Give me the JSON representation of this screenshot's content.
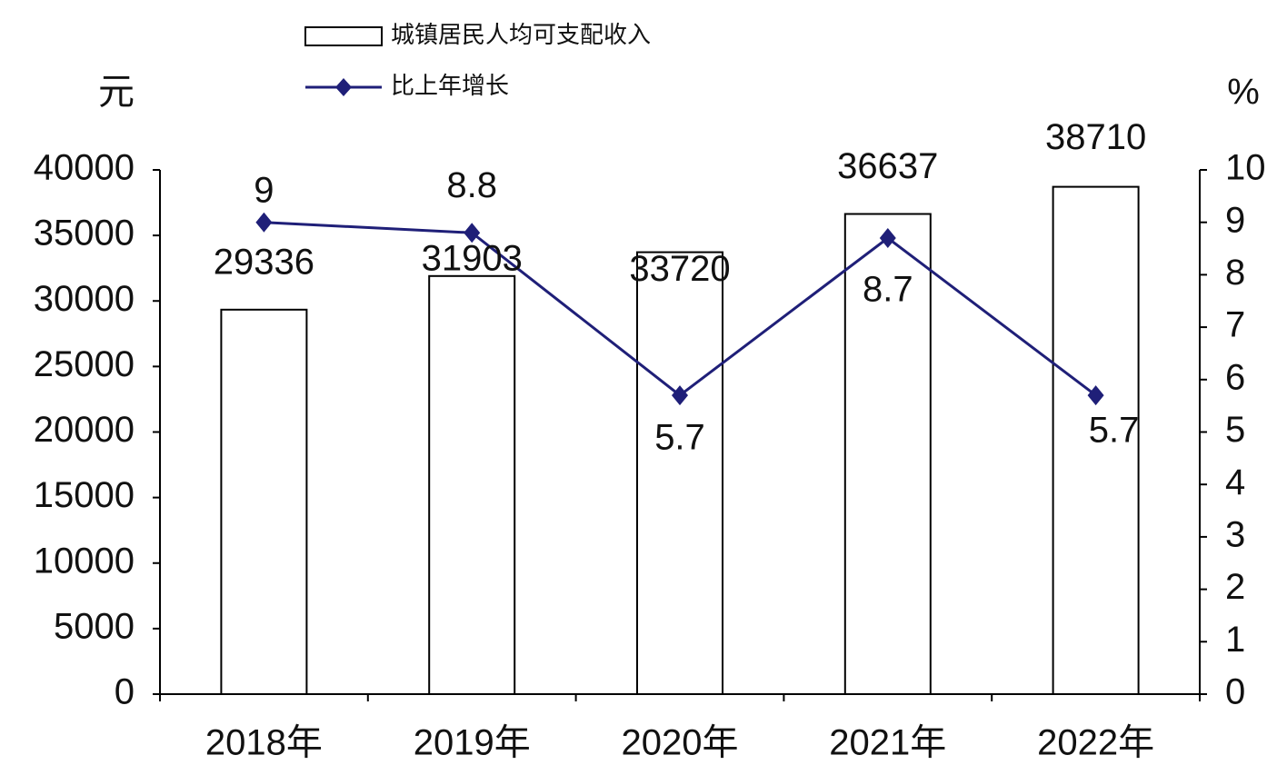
{
  "chart_data": {
    "type": "bar-line",
    "y_label": "元",
    "y2_label": "%",
    "categories": [
      "2018年",
      "2019年",
      "2020年",
      "2021年",
      "2022年"
    ],
    "series": [
      {
        "name": "城镇居民人均可支配收入",
        "type": "bar",
        "color": "#ffffff",
        "values": [
          29336,
          31903,
          33720,
          36637,
          38710
        ]
      },
      {
        "name": "比上年增长",
        "type": "line",
        "color": "#1f1f78",
        "axis": "y2",
        "values": [
          9,
          8.8,
          5.7,
          8.7,
          5.7
        ]
      }
    ],
    "ylim": [
      0,
      40000
    ],
    "yticks": [
      0,
      5000,
      10000,
      15000,
      20000,
      25000,
      30000,
      35000,
      40000
    ],
    "y2lim": [
      0,
      10
    ],
    "y2ticks": [
      0,
      1,
      2,
      3,
      4,
      5,
      6,
      7,
      8,
      9,
      10
    ],
    "grid": false
  }
}
